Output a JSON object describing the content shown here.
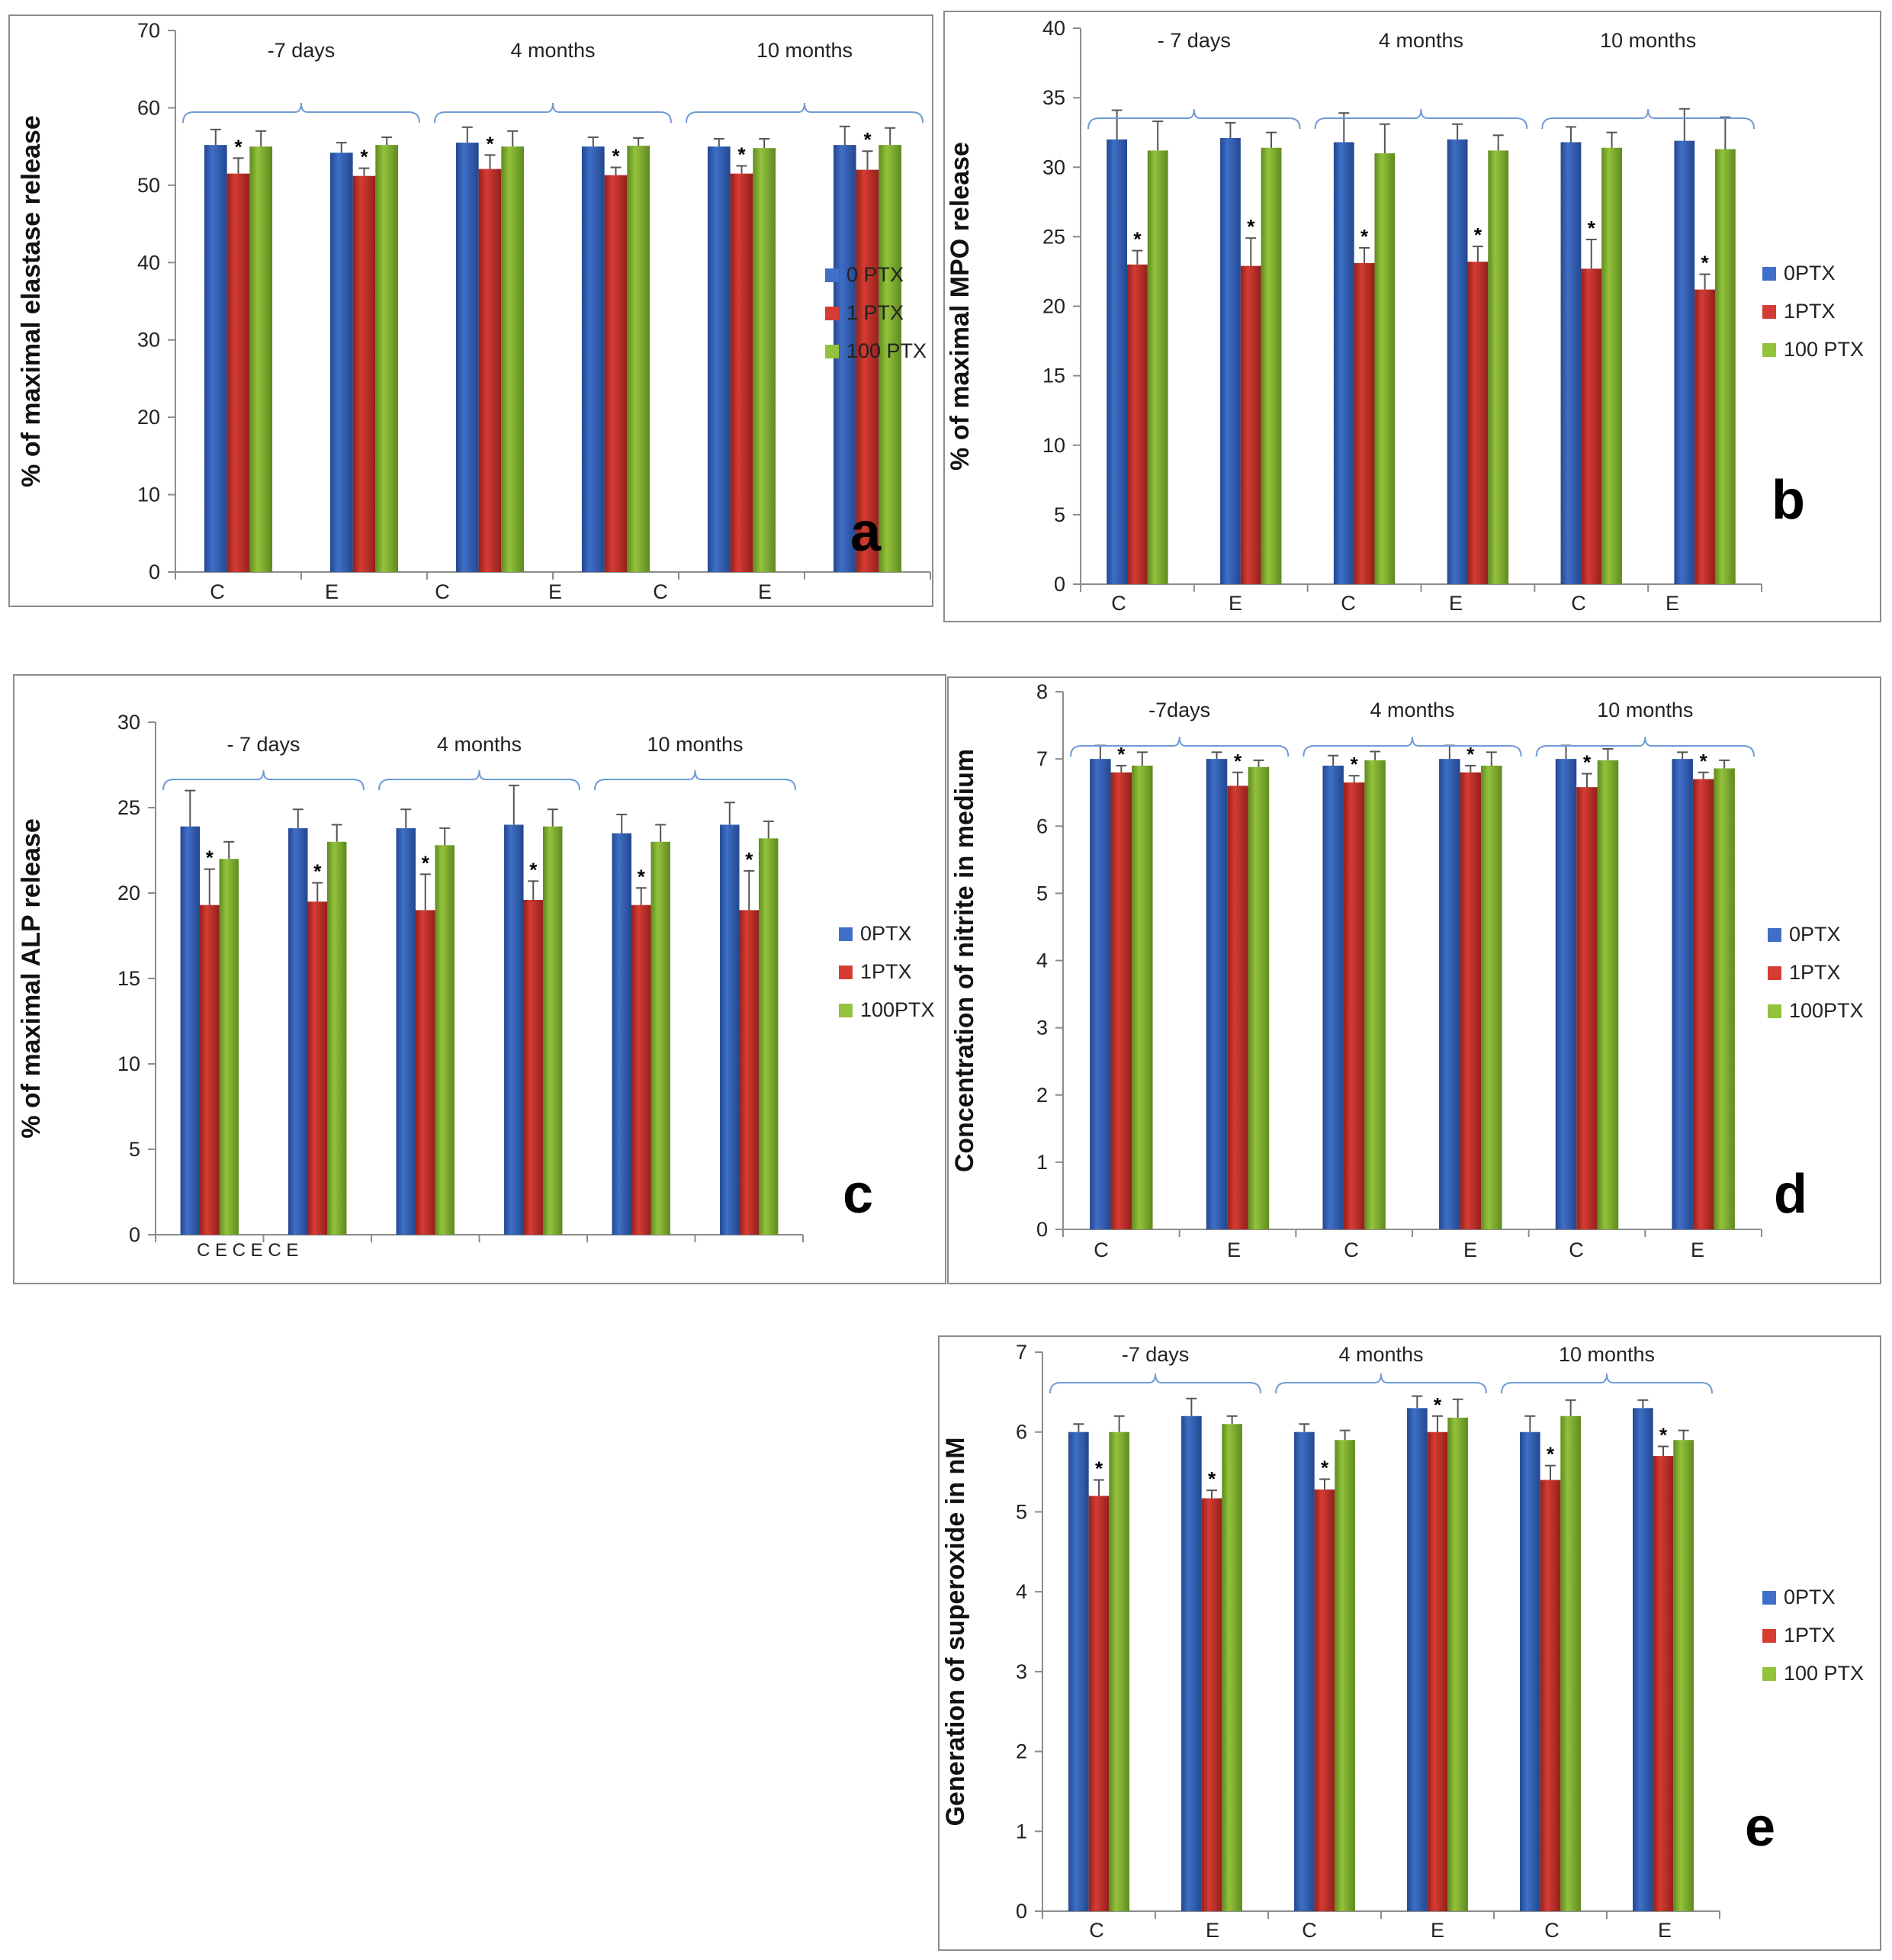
{
  "colors": {
    "series": [
      "#3f6fc7",
      "#d53c33",
      "#93c23c"
    ],
    "series_dark": [
      "#24478f",
      "#93201b",
      "#5f8a1f"
    ],
    "bracket": "#6f9bd4"
  },
  "chart_data": [
    {
      "panel": "a",
      "type": "bar",
      "ylabel": "% of maximal elastase release",
      "ylim": [
        0,
        70
      ],
      "yticks": [
        0,
        10,
        20,
        30,
        40,
        50,
        60,
        70
      ],
      "categories": [
        "C",
        "E",
        "C",
        "E",
        "C",
        "E"
      ],
      "groups": [
        {
          "label": "-7 days",
          "span": [
            0,
            1
          ]
        },
        {
          "label": "4 months",
          "span": [
            2,
            3
          ]
        },
        {
          "label": "10 months",
          "span": [
            4,
            5
          ]
        }
      ],
      "series": [
        {
          "name": "0 PTX",
          "values": [
            55.2,
            54.2,
            55.5,
            55.0,
            55.0,
            55.2
          ],
          "errors": [
            2.0,
            1.3,
            2.0,
            1.2,
            1.0,
            2.4
          ]
        },
        {
          "name": "1 PTX",
          "values": [
            51.5,
            51.2,
            52.1,
            51.3,
            51.5,
            52.0
          ],
          "errors": [
            2.0,
            1.0,
            1.8,
            1.0,
            1.0,
            2.4
          ]
        },
        {
          "name": "100 PTX",
          "values": [
            55.0,
            55.2,
            55.0,
            55.1,
            54.8,
            55.2
          ],
          "errors": [
            2.0,
            1.0,
            2.0,
            1.0,
            1.2,
            2.2
          ]
        }
      ],
      "stars": [
        "*",
        "*",
        "*",
        "*",
        "*",
        "*"
      ]
    },
    {
      "panel": "b",
      "type": "bar",
      "ylabel": "% of maximal MPO release",
      "ylim": [
        0,
        40
      ],
      "yticks": [
        0,
        5,
        10,
        15,
        20,
        25,
        30,
        35,
        40
      ],
      "categories": [
        "C",
        "E",
        "C",
        "E",
        "C",
        "E"
      ],
      "groups": [
        {
          "label": "- 7 days",
          "span": [
            0,
            1
          ]
        },
        {
          "label": "4 months",
          "span": [
            2,
            3
          ]
        },
        {
          "label": "10 months",
          "span": [
            4,
            5
          ]
        }
      ],
      "series": [
        {
          "name": "0PTX",
          "values": [
            32.0,
            32.1,
            31.8,
            32.0,
            31.8,
            31.9
          ],
          "errors": [
            2.1,
            1.1,
            2.1,
            1.1,
            1.1,
            2.3
          ]
        },
        {
          "name": "1PTX",
          "values": [
            23.0,
            22.9,
            23.1,
            23.2,
            22.7,
            21.2
          ],
          "errors": [
            1.0,
            2.0,
            1.1,
            1.1,
            2.1,
            1.1
          ]
        },
        {
          "name": "100 PTX",
          "values": [
            31.2,
            31.4,
            31.0,
            31.2,
            31.4,
            31.3
          ],
          "errors": [
            2.1,
            1.1,
            2.1,
            1.1,
            1.1,
            2.3
          ]
        }
      ],
      "stars": [
        "*",
        "*",
        "*",
        "*",
        "*",
        "*"
      ]
    },
    {
      "panel": "c",
      "type": "bar",
      "ylabel": "% of maximal ALP release",
      "ylim": [
        0,
        30
      ],
      "yticks": [
        0,
        5,
        10,
        15,
        20,
        25,
        30
      ],
      "categories": [
        "",
        "",
        "",
        "",
        "",
        ""
      ],
      "extra_category_text": "C E C E C E",
      "groups": [
        {
          "label": "- 7 days",
          "span": [
            0,
            1
          ]
        },
        {
          "label": "4 months",
          "span": [
            2,
            3
          ]
        },
        {
          "label": "10 months",
          "span": [
            4,
            5
          ]
        }
      ],
      "series": [
        {
          "name": "0PTX",
          "values": [
            23.9,
            23.8,
            23.8,
            24.0,
            23.5,
            24.0
          ],
          "errors": [
            2.1,
            1.1,
            1.1,
            2.3,
            1.1,
            1.3
          ]
        },
        {
          "name": "1PTX",
          "values": [
            19.3,
            19.5,
            19.0,
            19.6,
            19.3,
            19.0
          ],
          "errors": [
            2.1,
            1.1,
            2.1,
            1.1,
            1.0,
            2.3
          ]
        },
        {
          "name": "100PTX",
          "values": [
            22.0,
            23.0,
            22.8,
            23.9,
            23.0,
            23.2
          ],
          "errors": [
            1.0,
            1.0,
            1.0,
            1.0,
            1.0,
            1.0
          ]
        }
      ],
      "stars": [
        "*",
        "*",
        "*",
        "*",
        "*",
        "*"
      ]
    },
    {
      "panel": "d",
      "type": "bar",
      "ylabel": "Concentration  of nitrite in medium",
      "ylim": [
        0,
        8
      ],
      "yticks": [
        0,
        1,
        2,
        3,
        4,
        5,
        6,
        7,
        8
      ],
      "categories": [
        "C",
        "E",
        "C",
        "E",
        "C",
        "E"
      ],
      "groups": [
        {
          "label": "-7days",
          "span": [
            0,
            1
          ]
        },
        {
          "label": "4 months",
          "span": [
            2,
            3
          ]
        },
        {
          "label": "10 months",
          "span": [
            4,
            5
          ]
        }
      ],
      "series": [
        {
          "name": "0PTX",
          "values": [
            7.0,
            7.0,
            6.9,
            7.0,
            7.0,
            7.0
          ],
          "errors": [
            0.2,
            0.1,
            0.15,
            0.2,
            0.2,
            0.1
          ]
        },
        {
          "name": "1PTX",
          "values": [
            6.8,
            6.6,
            6.65,
            6.8,
            6.58,
            6.7
          ],
          "errors": [
            0.1,
            0.2,
            0.1,
            0.1,
            0.2,
            0.1
          ]
        },
        {
          "name": "100PTX",
          "values": [
            6.9,
            6.88,
            6.98,
            6.9,
            6.98,
            6.86
          ],
          "errors": [
            0.2,
            0.1,
            0.13,
            0.2,
            0.17,
            0.12
          ]
        }
      ],
      "stars": [
        "*",
        "*",
        "*",
        "*",
        "*",
        "*"
      ]
    },
    {
      "panel": "e",
      "type": "bar",
      "ylabel": "Generation of superoxide in nM",
      "ylim": [
        0,
        7
      ],
      "yticks": [
        0,
        1,
        2,
        3,
        4,
        5,
        6,
        7
      ],
      "categories": [
        "C",
        "E",
        "C",
        "E",
        "C",
        "E"
      ],
      "groups": [
        {
          "label": "-7 days",
          "span": [
            0,
            1
          ]
        },
        {
          "label": "4 months",
          "span": [
            2,
            3
          ]
        },
        {
          "label": "10 months",
          "span": [
            4,
            5
          ]
        }
      ],
      "series": [
        {
          "name": "0PTX",
          "values": [
            6.0,
            6.2,
            6.0,
            6.3,
            6.0,
            6.3
          ],
          "errors": [
            0.1,
            0.22,
            0.1,
            0.15,
            0.2,
            0.1
          ]
        },
        {
          "name": "1PTX",
          "values": [
            5.2,
            5.17,
            5.28,
            6.0,
            5.4,
            5.7
          ],
          "errors": [
            0.2,
            0.1,
            0.13,
            0.2,
            0.18,
            0.12
          ]
        },
        {
          "name": "100 PTX",
          "values": [
            6.0,
            6.1,
            5.9,
            6.18,
            6.2,
            5.9
          ],
          "errors": [
            0.2,
            0.1,
            0.12,
            0.23,
            0.2,
            0.12
          ]
        }
      ],
      "stars": [
        "*",
        "*",
        "*",
        "*",
        "*",
        "*"
      ]
    }
  ]
}
